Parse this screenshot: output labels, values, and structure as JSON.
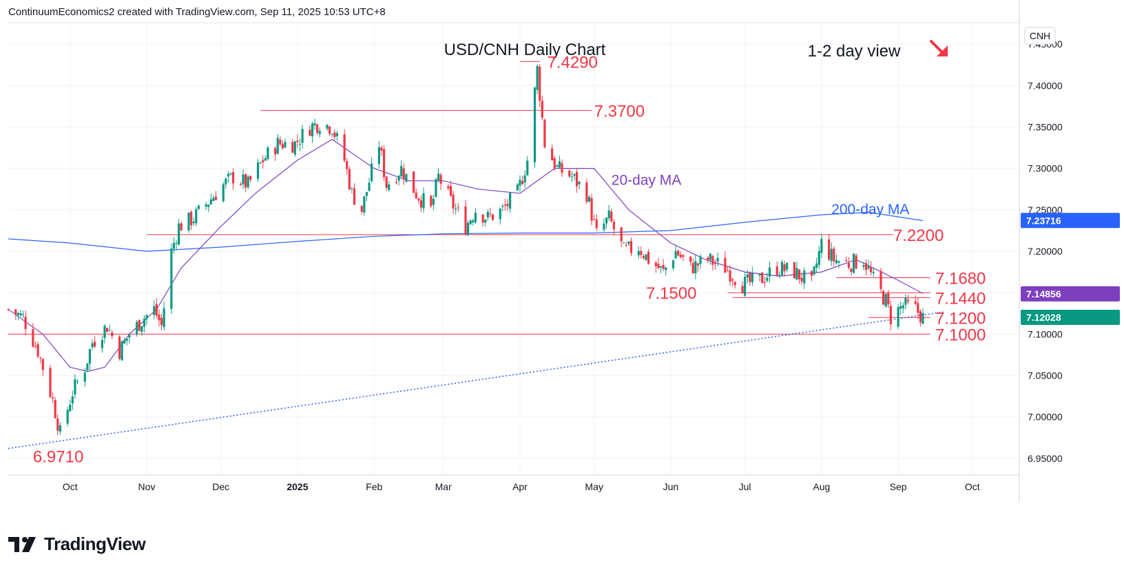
{
  "header": {
    "credit": "ContinuumEconomics2 created with TradingView.com, Sep 11, 2025 10:53 UTC+8"
  },
  "branding": {
    "logo_text": "TradingView",
    "logo_icon": "tradingview-logo-icon"
  },
  "chart_data": {
    "type": "candlestick",
    "title": "USD/CNH Daily Chart",
    "subtitle": "1-2 day view",
    "symbol": "CNH",
    "direction_icon": "arrow-down-right-icon",
    "ylim": [
      6.93,
      7.475
    ],
    "x_range": [
      "2024-09-06",
      "2025-10-20"
    ],
    "y_ticks": [
      "7.45000",
      "7.40000",
      "7.35000",
      "7.30000",
      "7.25000",
      "7.20000",
      "7.15000",
      "7.10000",
      "7.05000",
      "7.00000",
      "6.95000"
    ],
    "y_tick_values": [
      7.45,
      7.4,
      7.35,
      7.3,
      7.25,
      7.2,
      7.15,
      7.1,
      7.05,
      7.0,
      6.95
    ],
    "x_ticks": [
      {
        "label": "Oct",
        "date": "2024-10-01",
        "bold": false
      },
      {
        "label": "Nov",
        "date": "2024-11-01",
        "bold": false
      },
      {
        "label": "Dec",
        "date": "2024-12-01",
        "bold": false
      },
      {
        "label": "2025",
        "date": "2025-01-01",
        "bold": true
      },
      {
        "label": "Feb",
        "date": "2025-02-01",
        "bold": false
      },
      {
        "label": "Mar",
        "date": "2025-03-01",
        "bold": false
      },
      {
        "label": "Apr",
        "date": "2025-04-01",
        "bold": false
      },
      {
        "label": "May",
        "date": "2025-05-01",
        "bold": false
      },
      {
        "label": "Jun",
        "date": "2025-06-01",
        "bold": false
      },
      {
        "label": "Jul",
        "date": "2025-07-01",
        "bold": false
      },
      {
        "label": "Aug",
        "date": "2025-08-01",
        "bold": false
      },
      {
        "label": "Sep",
        "date": "2025-09-01",
        "bold": false
      },
      {
        "label": "Oct",
        "date": "2025-10-01",
        "bold": false
      }
    ],
    "colors": {
      "up": "#089981",
      "down": "#f23645",
      "ma20": "#7e3fbf",
      "ma200": "#2962ff",
      "level": "#f23645",
      "trend": "#2962ff"
    },
    "price_badges": [
      {
        "label": "7.23716",
        "value": 7.23716,
        "color": "#2962ff"
      },
      {
        "label": "7.14856",
        "value": 7.14856,
        "color": "#7e3fbf"
      },
      {
        "label": "7.12028",
        "value": 7.12028,
        "color": "#089981"
      }
    ],
    "levels": [
      {
        "label": "7.4290",
        "value": 7.429,
        "from": "2025-04-01",
        "to": "2025-04-09",
        "label_date": "2025-04-12"
      },
      {
        "label": "7.3700",
        "value": 7.37,
        "from": "2024-12-17",
        "to": "2025-04-30",
        "label_date": "2025-05-01"
      },
      {
        "label": "7.2200",
        "value": 7.22,
        "from": "2024-11-01",
        "to": "2025-08-30",
        "label_date": "2025-08-30"
      },
      {
        "label": "7.1680",
        "value": 7.168,
        "from": "2025-08-07",
        "to": "2025-09-14",
        "label_date": "2025-09-16"
      },
      {
        "label": "7.1500",
        "value": 7.15,
        "from": "2025-06-24",
        "to": "2025-09-14",
        "label_date": "2025-05-22"
      },
      {
        "label": "7.1440",
        "value": 7.144,
        "from": "2025-06-26",
        "to": "2025-09-14",
        "label_date": "2025-09-16"
      },
      {
        "label": "7.1200",
        "value": 7.12,
        "from": "2025-08-20",
        "to": "2025-09-14",
        "label_date": "2025-09-16"
      },
      {
        "label": "7.1000",
        "value": 7.1,
        "from": "2024-09-06",
        "to": "2025-09-14",
        "label_date": "2025-09-16"
      }
    ],
    "low_label": {
      "label": "6.9710",
      "value": 6.971,
      "date": "2024-09-16"
    },
    "trendline": {
      "points": [
        [
          "2024-09-06",
          6.962
        ],
        [
          "2025-09-20",
          7.127
        ]
      ]
    },
    "ma_labels": [
      {
        "label": "20-day MA",
        "date": "2025-05-08",
        "value": 7.28
      },
      {
        "label": "200-day MA",
        "date": "2025-08-05",
        "value": 7.245
      }
    ],
    "ma200": [
      [
        "2024-09-06",
        7.215
      ],
      [
        "2024-10-01",
        7.21
      ],
      [
        "2024-11-01",
        7.2
      ],
      [
        "2024-12-01",
        7.205
      ],
      [
        "2025-01-01",
        7.212
      ],
      [
        "2025-02-01",
        7.218
      ],
      [
        "2025-03-01",
        7.221
      ],
      [
        "2025-04-01",
        7.222
      ],
      [
        "2025-05-01",
        7.222
      ],
      [
        "2025-06-01",
        7.225
      ],
      [
        "2025-07-01",
        7.235
      ],
      [
        "2025-08-01",
        7.244
      ],
      [
        "2025-08-20",
        7.247
      ],
      [
        "2025-09-11",
        7.237
      ]
    ],
    "ma20": [
      [
        "2024-09-06",
        7.13
      ],
      [
        "2024-09-20",
        7.1
      ],
      [
        "2024-10-01",
        7.06
      ],
      [
        "2024-10-08",
        7.055
      ],
      [
        "2024-10-15",
        7.06
      ],
      [
        "2024-10-25",
        7.1
      ],
      [
        "2024-11-05",
        7.13
      ],
      [
        "2024-11-15",
        7.18
      ],
      [
        "2024-12-01",
        7.23
      ],
      [
        "2024-12-15",
        7.27
      ],
      [
        "2025-01-01",
        7.31
      ],
      [
        "2025-01-15",
        7.335
      ],
      [
        "2025-02-01",
        7.3
      ],
      [
        "2025-02-15",
        7.285
      ],
      [
        "2025-03-01",
        7.285
      ],
      [
        "2025-03-15",
        7.275
      ],
      [
        "2025-04-01",
        7.27
      ],
      [
        "2025-04-15",
        7.3
      ],
      [
        "2025-05-01",
        7.3
      ],
      [
        "2025-05-15",
        7.25
      ],
      [
        "2025-06-01",
        7.21
      ],
      [
        "2025-06-15",
        7.19
      ],
      [
        "2025-07-01",
        7.175
      ],
      [
        "2025-07-15",
        7.17
      ],
      [
        "2025-08-01",
        7.175
      ],
      [
        "2025-08-15",
        7.19
      ],
      [
        "2025-09-01",
        7.165
      ],
      [
        "2025-09-11",
        7.149
      ]
    ],
    "candles_close_path": [
      [
        "2024-09-06",
        7.13
      ],
      [
        "2024-09-12",
        7.12
      ],
      [
        "2024-09-18",
        7.08
      ],
      [
        "2024-09-24",
        7.02
      ],
      [
        "2024-09-27",
        6.98
      ],
      [
        "2024-10-02",
        7.03
      ],
      [
        "2024-10-07",
        7.06
      ],
      [
        "2024-10-10",
        7.09
      ],
      [
        "2024-10-16",
        7.11
      ],
      [
        "2024-10-21",
        7.08
      ],
      [
        "2024-10-25",
        7.1
      ],
      [
        "2024-10-31",
        7.12
      ],
      [
        "2024-11-04",
        7.13
      ],
      [
        "2024-11-07",
        7.11
      ],
      [
        "2024-11-11",
        7.2
      ],
      [
        "2024-11-14",
        7.23
      ],
      [
        "2024-11-20",
        7.24
      ],
      [
        "2024-11-26",
        7.26
      ],
      [
        "2024-12-02",
        7.28
      ],
      [
        "2024-12-06",
        7.29
      ],
      [
        "2024-12-12",
        7.28
      ],
      [
        "2024-12-18",
        7.31
      ],
      [
        "2024-12-24",
        7.33
      ],
      [
        "2024-12-31",
        7.33
      ],
      [
        "2025-01-06",
        7.35
      ],
      [
        "2025-01-10",
        7.355
      ],
      [
        "2025-01-15",
        7.35
      ],
      [
        "2025-01-20",
        7.31
      ],
      [
        "2025-01-23",
        7.27
      ],
      [
        "2025-01-27",
        7.25
      ],
      [
        "2025-02-03",
        7.33
      ],
      [
        "2025-02-06",
        7.28
      ],
      [
        "2025-02-12",
        7.3
      ],
      [
        "2025-02-18",
        7.27
      ],
      [
        "2025-02-24",
        7.25
      ],
      [
        "2025-02-27",
        7.29
      ],
      [
        "2025-03-04",
        7.26
      ],
      [
        "2025-03-10",
        7.23
      ],
      [
        "2025-03-14",
        7.25
      ],
      [
        "2025-03-19",
        7.24
      ],
      [
        "2025-03-25",
        7.25
      ],
      [
        "2025-03-31",
        7.27
      ],
      [
        "2025-04-04",
        7.31
      ],
      [
        "2025-04-08",
        7.42
      ],
      [
        "2025-04-11",
        7.33
      ],
      [
        "2025-04-16",
        7.3
      ],
      [
        "2025-04-22",
        7.29
      ],
      [
        "2025-04-28",
        7.27
      ],
      [
        "2025-05-02",
        7.22
      ],
      [
        "2025-05-07",
        7.24
      ],
      [
        "2025-05-13",
        7.2
      ],
      [
        "2025-05-19",
        7.205
      ],
      [
        "2025-05-23",
        7.19
      ],
      [
        "2025-05-29",
        7.175
      ],
      [
        "2025-06-03",
        7.2
      ],
      [
        "2025-06-09",
        7.18
      ],
      [
        "2025-06-16",
        7.19
      ],
      [
        "2025-06-23",
        7.18
      ],
      [
        "2025-06-30",
        7.16
      ],
      [
        "2025-07-07",
        7.165
      ],
      [
        "2025-07-14",
        7.18
      ],
      [
        "2025-07-21",
        7.175
      ],
      [
        "2025-07-28",
        7.16
      ],
      [
        "2025-08-01",
        7.21
      ],
      [
        "2025-08-06",
        7.19
      ],
      [
        "2025-08-12",
        7.185
      ],
      [
        "2025-08-18",
        7.19
      ],
      [
        "2025-08-22",
        7.165
      ],
      [
        "2025-08-27",
        7.14
      ],
      [
        "2025-08-29",
        7.12
      ],
      [
        "2025-09-03",
        7.135
      ],
      [
        "2025-09-08",
        7.13
      ],
      [
        "2025-09-11",
        7.12
      ]
    ]
  }
}
